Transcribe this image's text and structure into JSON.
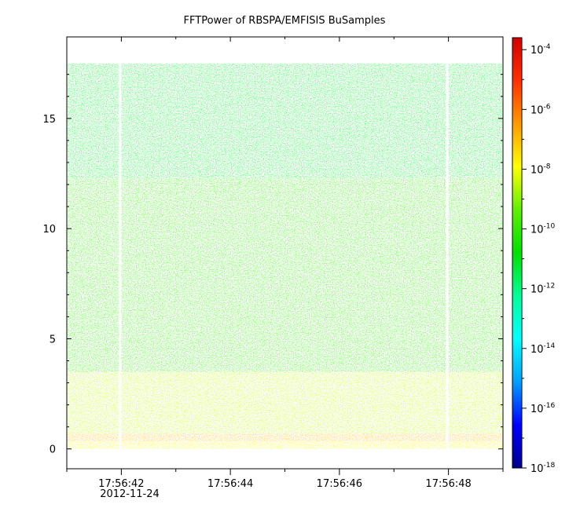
{
  "chart_data": {
    "type": "heatmap",
    "title": "FFTPower of RBSPA/EMFISIS  BuSamples",
    "xlabel": "",
    "ylabel": "",
    "x_tick_labels": [
      "17:56:42",
      "17:56:44",
      "17:56:46",
      "17:56:48"
    ],
    "x_date_label": "2012-11-24",
    "x_tick_values_s": [
      42,
      44,
      46,
      48
    ],
    "x_range_s": [
      41.0,
      49.0
    ],
    "y_ticks": [
      0,
      5,
      10,
      15
    ],
    "y_tick_labels": [
      "0",
      "5",
      "10",
      "15"
    ],
    "ylim": [
      -0.9,
      18.7
    ],
    "data_y_extent": [
      0,
      17.5
    ],
    "data_gaps_s": [
      [
        41.95,
        42.0
      ],
      [
        47.95,
        48.0
      ]
    ],
    "colorbar": {
      "scale": "log",
      "range_exp": [
        -18,
        -3.6
      ],
      "tick_base": "10",
      "tick_exponents": [
        "-4",
        "-6",
        "-8",
        "-10",
        "-12",
        "-14",
        "-16",
        "-18"
      ],
      "colormap": [
        "#00008f",
        "#0000ff",
        "#00a0ff",
        "#00ffff",
        "#00ff9a",
        "#00e000",
        "#60f000",
        "#ffff00",
        "#ff9a00",
        "#ff3000",
        "#d40000"
      ]
    },
    "power_bands": [
      {
        "y_from": 12.3,
        "y_to": 17.5,
        "log10_power": -11.2
      },
      {
        "y_from": 3.5,
        "y_to": 12.3,
        "log10_power": -10.1
      },
      {
        "y_from": 0.7,
        "y_to": 3.5,
        "log10_power": -8.5
      },
      {
        "y_from": 0.35,
        "y_to": 0.7,
        "log10_power": -7.0
      },
      {
        "y_from": 0,
        "y_to": 0.35,
        "log10_power": -8.0
      }
    ]
  }
}
